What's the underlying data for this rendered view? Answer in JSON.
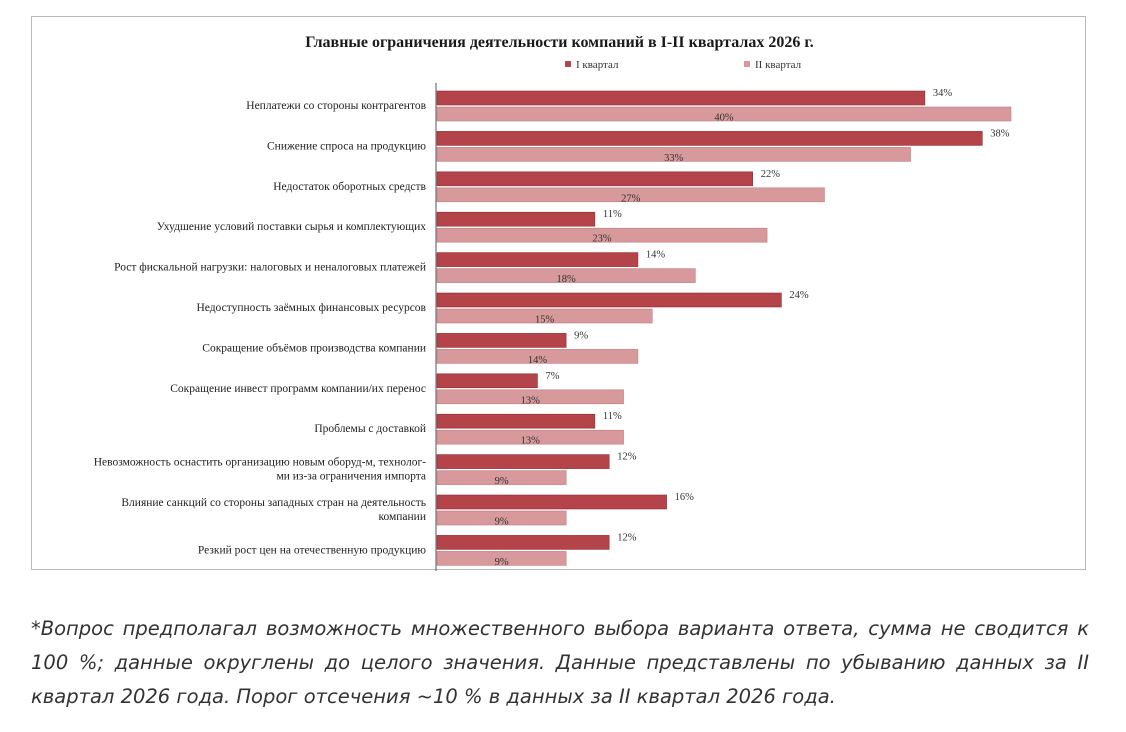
{
  "colors": {
    "q1": "#b4434a",
    "q2": "#d7999b",
    "axis": "#555555"
  },
  "chart_data": {
    "type": "bar",
    "orientation": "horizontal",
    "title": "Главные ограничения деятельности компаний в I-II кварталах 2026 г.",
    "legend_position": "top",
    "xlim": [
      0,
      40
    ],
    "grid": false,
    "categories": [
      [
        "Неплатежи со стороны контрагентов"
      ],
      [
        "Снижение спроса на продукцию"
      ],
      [
        "Недостаток оборотных средств"
      ],
      [
        "Ухудшение условий поставки сырья и комплектующих"
      ],
      [
        "Рост фискальной нагрузки: налоговых и неналоговых платежей"
      ],
      [
        "Недоступность заёмных финансовых ресурсов"
      ],
      [
        "Сокращение объёмов производства компании"
      ],
      [
        "Сокращение инвест программ компании/их перенос"
      ],
      [
        "Проблемы с доставкой"
      ],
      [
        "Невозможность оснастить организацию новым оборуд-м, технолог-",
        "ми из-за ограничения импорта"
      ],
      [
        "Влияние санкций со стороны западных стран на деятельность",
        "компании"
      ],
      [
        "Резкий рост цен на отечественную продукцию"
      ]
    ],
    "series": [
      {
        "name": "I квартал",
        "values": [
          34,
          38,
          22,
          11,
          14,
          24,
          9,
          7,
          11,
          12,
          16,
          12
        ],
        "labels": [
          "34%",
          "38%",
          "22%",
          "11%",
          "14%",
          "24%",
          "9%",
          "7%",
          "11%",
          "12%",
          "16%",
          "12%"
        ]
      },
      {
        "name": "II квартал",
        "values": [
          40,
          33,
          27,
          23,
          18,
          15,
          14,
          13,
          13,
          9,
          9,
          9
        ],
        "labels": [
          "40%",
          "33%",
          "27%",
          "23%",
          "18%",
          "15%",
          "14%",
          "13%",
          "13%",
          "9%",
          "9%",
          "9%"
        ]
      }
    ]
  },
  "footnote": "*Вопрос предполагал возможность множественного выбора варианта ответа, сумма не сводится к 100 %; данные округлены до целого значения. Данные представлены по убыванию данных за II квартал 2026 года. Порог отсечения ~10 % в данных за II квартал 2026 года."
}
